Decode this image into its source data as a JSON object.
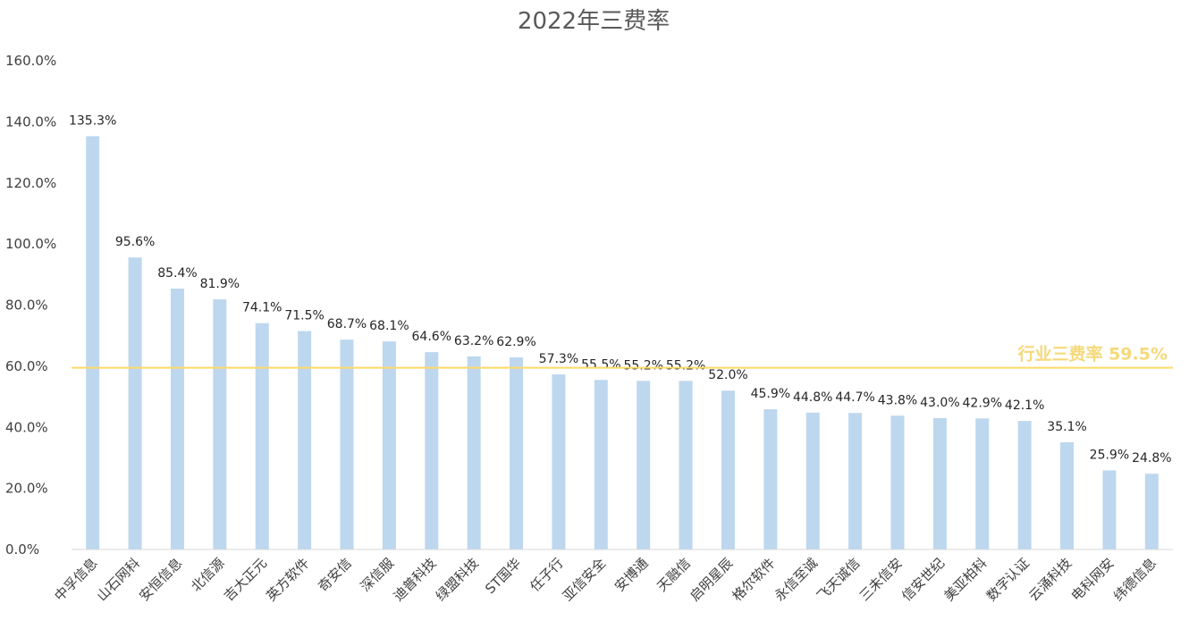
{
  "chart_data": {
    "type": "bar",
    "title": "2022年三费率",
    "xlabel": "",
    "ylabel": "",
    "ylim": [
      0,
      160
    ],
    "yticks": [
      "0.0%",
      "20.0%",
      "40.0%",
      "60.0%",
      "80.0%",
      "100.0%",
      "120.0%",
      "140.0%",
      "160.0%"
    ],
    "categories": [
      "中孚信息",
      "山石网科",
      "安恒信息",
      "北信源",
      "吉大正元",
      "英方软件",
      "奇安信",
      "深信服",
      "迪普科技",
      "绿盟科技",
      "ST国华",
      "任子行",
      "亚信安全",
      "安博通",
      "天融信",
      "启明星辰",
      "格尔软件",
      "永信至诚",
      "飞天诚信",
      "三未信安",
      "信安世纪",
      "美亚柏科",
      "数字认证",
      "云涌科技",
      "电科网安",
      "纬德信息"
    ],
    "values": [
      135.3,
      95.6,
      85.4,
      81.9,
      74.1,
      71.5,
      68.7,
      68.1,
      64.6,
      63.2,
      62.9,
      57.3,
      55.5,
      55.2,
      55.2,
      52.0,
      45.9,
      44.8,
      44.7,
      43.8,
      43.0,
      42.9,
      42.1,
      35.1,
      25.9,
      24.8
    ],
    "data_labels": [
      "135.3%",
      "95.6%",
      "85.4%",
      "81.9%",
      "74.1%",
      "71.5%",
      "68.7%",
      "68.1%",
      "64.6%",
      "63.2%",
      "62.9%",
      "57.3%",
      "55.5%",
      "55.2%",
      "55.2%",
      "52.0%",
      "45.9%",
      "44.8%",
      "44.7%",
      "43.8%",
      "43.0%",
      "42.9%",
      "42.1%",
      "35.1%",
      "25.9%",
      "24.8%"
    ],
    "reference_line": {
      "value": 59.5,
      "label": "行业三费率 59.5%"
    },
    "grid": false,
    "colors": {
      "bar": "#BDD7EE",
      "reference": "#FFD966",
      "axis": "#D9D9D9"
    }
  }
}
